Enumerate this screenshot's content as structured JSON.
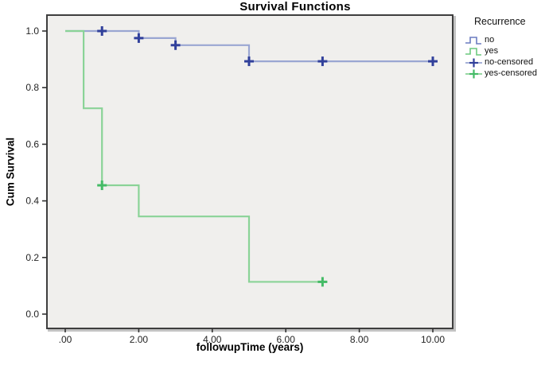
{
  "chart_data": {
    "type": "line",
    "subtype": "kaplan-meier-step",
    "title": "Survival Functions",
    "xlabel": "followupTime (years)",
    "ylabel": "Cum Survival",
    "xlim": [
      0,
      10
    ],
    "ylim": [
      0,
      1
    ],
    "grid": false,
    "legend_position": "right",
    "plot_bg": "#f0efed",
    "frame_color": "#3e3e3e",
    "x_ticks": {
      "values": [
        0,
        2,
        4,
        6,
        8,
        10
      ],
      "labels": [
        ".00",
        "2.00",
        "4.00",
        "6.00",
        "8.00",
        "10.00"
      ]
    },
    "y_ticks": {
      "values": [
        0,
        0.2,
        0.4,
        0.6,
        0.8,
        1.0
      ],
      "labels": [
        "0.0",
        "0.2",
        "0.4",
        "0.6",
        "0.8",
        "1.0"
      ]
    },
    "series": [
      {
        "name": "no",
        "line_color": "#9aa6d2",
        "marker_color": "#31409b",
        "steps": [
          [
            0,
            1.0
          ],
          [
            2,
            1.0
          ],
          [
            2,
            0.975
          ],
          [
            3,
            0.975
          ],
          [
            3,
            0.95
          ],
          [
            5,
            0.95
          ],
          [
            5,
            0.893
          ],
          [
            10,
            0.893
          ]
        ],
        "censored": [
          [
            1,
            1.0
          ],
          [
            2,
            0.975
          ],
          [
            3,
            0.95
          ],
          [
            5,
            0.893
          ],
          [
            7,
            0.893
          ],
          [
            10,
            0.893
          ]
        ]
      },
      {
        "name": "yes",
        "line_color": "#8ad397",
        "marker_color": "#44bb66",
        "steps": [
          [
            0,
            1.0
          ],
          [
            0.5,
            1.0
          ],
          [
            0.5,
            0.727
          ],
          [
            1,
            0.727
          ],
          [
            1,
            0.455
          ],
          [
            2,
            0.455
          ],
          [
            2,
            0.345
          ],
          [
            5,
            0.345
          ],
          [
            5,
            0.114
          ],
          [
            7,
            0.114
          ]
        ],
        "censored": [
          [
            1,
            0.455
          ],
          [
            7,
            0.114
          ]
        ]
      }
    ],
    "legend": {
      "title": "Recurrence",
      "items": [
        {
          "label": "no",
          "symbol": "step",
          "line_color": "#6b7cc0",
          "marker_color": "#6b7cc0"
        },
        {
          "label": "yes",
          "symbol": "step",
          "line_color": "#6cc97e",
          "marker_color": "#6cc97e"
        },
        {
          "label": "no-censored",
          "symbol": "censored",
          "line_color": "#9aa6d2",
          "marker_color": "#31409b"
        },
        {
          "label": "yes-censored",
          "symbol": "censored",
          "line_color": "#8ad397",
          "marker_color": "#44bb66"
        }
      ]
    }
  }
}
